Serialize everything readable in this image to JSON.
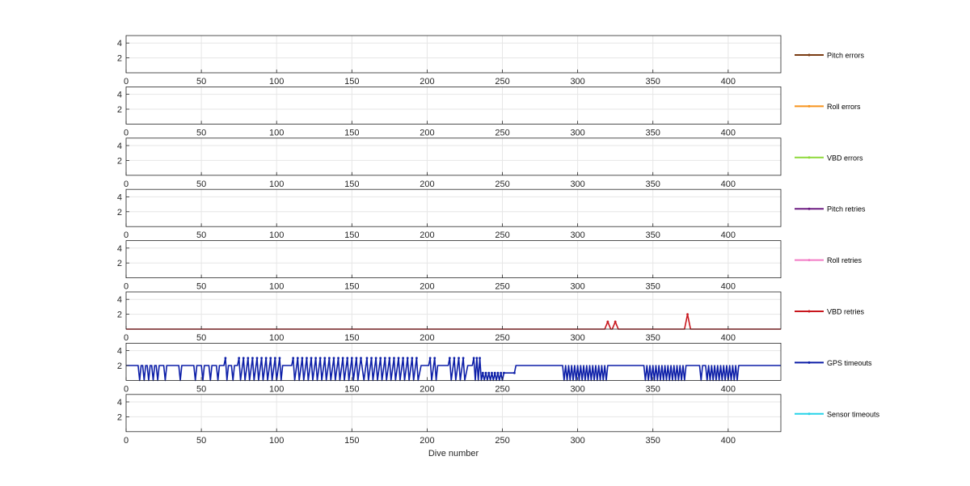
{
  "chart_data": {
    "type": "line",
    "xlabel": "Dive number",
    "xlim": [
      0,
      435
    ],
    "ylim": [
      0,
      5
    ],
    "x_ticks": [
      0,
      50,
      100,
      150,
      200,
      250,
      300,
      350,
      400
    ],
    "y_ticks": [
      2,
      4
    ],
    "grid": true,
    "legend_placement": "right",
    "series": [
      {
        "name": "Pitch errors",
        "color": "#7a3b12",
        "points": []
      },
      {
        "name": "Roll errors",
        "color": "#f7941d",
        "points": []
      },
      {
        "name": "VBD errors",
        "color": "#8ed93a",
        "points": []
      },
      {
        "name": "Pitch retries",
        "color": "#6b1a80",
        "points": []
      },
      {
        "name": "Roll retries",
        "color": "#f27ac5",
        "points": []
      },
      {
        "name": "VBD retries",
        "color": "#c8161d",
        "points": [
          [
            0,
            0
          ],
          [
            318,
            0
          ],
          [
            320,
            1
          ],
          [
            322,
            0
          ],
          [
            323,
            0
          ],
          [
            325,
            1
          ],
          [
            327,
            0
          ],
          [
            371,
            0
          ],
          [
            373,
            2
          ],
          [
            375,
            0
          ],
          [
            435,
            0
          ]
        ]
      },
      {
        "name": "GPS timeouts",
        "color": "#0d1fa8",
        "points": [
          [
            0,
            2
          ],
          [
            8,
            2
          ],
          [
            9,
            0
          ],
          [
            10,
            2
          ],
          [
            11,
            2
          ],
          [
            12,
            0
          ],
          [
            13,
            2
          ],
          [
            14,
            2
          ],
          [
            15,
            0
          ],
          [
            16,
            2
          ],
          [
            17,
            2
          ],
          [
            18,
            0
          ],
          [
            19,
            2
          ],
          [
            20,
            2
          ],
          [
            21,
            0
          ],
          [
            22,
            2
          ],
          [
            25,
            2
          ],
          [
            26,
            0
          ],
          [
            27,
            2
          ],
          [
            35,
            2
          ],
          [
            36,
            0
          ],
          [
            37,
            2
          ],
          [
            45,
            2
          ],
          [
            46,
            0
          ],
          [
            47,
            2
          ],
          [
            50,
            2
          ],
          [
            51,
            0
          ],
          [
            52,
            2
          ],
          [
            55,
            2
          ],
          [
            56,
            0
          ],
          [
            57,
            2
          ],
          [
            60,
            2
          ],
          [
            61,
            0
          ],
          [
            62,
            2
          ],
          [
            65,
            2
          ],
          [
            66,
            3
          ],
          [
            67,
            0
          ],
          [
            68,
            2
          ],
          [
            70,
            2
          ],
          [
            71,
            0
          ],
          [
            72,
            2
          ],
          [
            74,
            2
          ],
          [
            75,
            3
          ],
          [
            76,
            0
          ],
          [
            78,
            3
          ],
          [
            79,
            0
          ],
          [
            81,
            3
          ],
          [
            82,
            0
          ],
          [
            84,
            3
          ],
          [
            85,
            0
          ],
          [
            87,
            3
          ],
          [
            88,
            0
          ],
          [
            90,
            3
          ],
          [
            91,
            0
          ],
          [
            93,
            3
          ],
          [
            94,
            0
          ],
          [
            96,
            3
          ],
          [
            97,
            0
          ],
          [
            99,
            3
          ],
          [
            100,
            0
          ],
          [
            102,
            3
          ],
          [
            103,
            0
          ],
          [
            104,
            2
          ],
          [
            110,
            2
          ],
          [
            111,
            3
          ],
          [
            112,
            0
          ],
          [
            114,
            3
          ],
          [
            115,
            0
          ],
          [
            117,
            3
          ],
          [
            118,
            0
          ],
          [
            120,
            3
          ],
          [
            121,
            0
          ],
          [
            123,
            3
          ],
          [
            124,
            0
          ],
          [
            126,
            3
          ],
          [
            127,
            0
          ],
          [
            129,
            3
          ],
          [
            130,
            0
          ],
          [
            132,
            3
          ],
          [
            133,
            0
          ],
          [
            135,
            3
          ],
          [
            136,
            0
          ],
          [
            138,
            3
          ],
          [
            139,
            0
          ],
          [
            141,
            3
          ],
          [
            142,
            0
          ],
          [
            144,
            3
          ],
          [
            145,
            0
          ],
          [
            147,
            3
          ],
          [
            148,
            0
          ],
          [
            150,
            3
          ],
          [
            151,
            0
          ],
          [
            153,
            3
          ],
          [
            154,
            0
          ],
          [
            156,
            3
          ],
          [
            158,
            0
          ],
          [
            160,
            3
          ],
          [
            161,
            0
          ],
          [
            163,
            3
          ],
          [
            164,
            0
          ],
          [
            166,
            3
          ],
          [
            167,
            0
          ],
          [
            169,
            3
          ],
          [
            170,
            0
          ],
          [
            172,
            3
          ],
          [
            173,
            0
          ],
          [
            175,
            3
          ],
          [
            176,
            0
          ],
          [
            178,
            3
          ],
          [
            179,
            0
          ],
          [
            181,
            3
          ],
          [
            182,
            0
          ],
          [
            184,
            3
          ],
          [
            185,
            0
          ],
          [
            187,
            3
          ],
          [
            188,
            0
          ],
          [
            190,
            3
          ],
          [
            191,
            0
          ],
          [
            193,
            3
          ],
          [
            194,
            0
          ],
          [
            196,
            2
          ],
          [
            201,
            2
          ],
          [
            202,
            3
          ],
          [
            203,
            0
          ],
          [
            205,
            3
          ],
          [
            206,
            0
          ],
          [
            207,
            2
          ],
          [
            214,
            2
          ],
          [
            215,
            3
          ],
          [
            216,
            0
          ],
          [
            218,
            3
          ],
          [
            219,
            0
          ],
          [
            221,
            3
          ],
          [
            222,
            0
          ],
          [
            224,
            3
          ],
          [
            225,
            0
          ],
          [
            227,
            2
          ],
          [
            230,
            2
          ],
          [
            231,
            3
          ],
          [
            232,
            0
          ],
          [
            233,
            3
          ],
          [
            234,
            0
          ],
          [
            235,
            3
          ],
          [
            236,
            0
          ],
          [
            237,
            1
          ],
          [
            238,
            0
          ],
          [
            239,
            1
          ],
          [
            240,
            0
          ],
          [
            241,
            1
          ],
          [
            242,
            0
          ],
          [
            243,
            1
          ],
          [
            244,
            0
          ],
          [
            245,
            1
          ],
          [
            246,
            0
          ],
          [
            247,
            1
          ],
          [
            248,
            0
          ],
          [
            249,
            1
          ],
          [
            250,
            0
          ],
          [
            251,
            1
          ],
          [
            258,
            1
          ],
          [
            259,
            2
          ],
          [
            290,
            2
          ],
          [
            291,
            0
          ],
          [
            292,
            2
          ],
          [
            293,
            0
          ],
          [
            294,
            2
          ],
          [
            295,
            0
          ],
          [
            296,
            2
          ],
          [
            297,
            0
          ],
          [
            298,
            2
          ],
          [
            299,
            0
          ],
          [
            300,
            2
          ],
          [
            301,
            0
          ],
          [
            302,
            2
          ],
          [
            303,
            0
          ],
          [
            304,
            2
          ],
          [
            305,
            0
          ],
          [
            306,
            2
          ],
          [
            307,
            0
          ],
          [
            308,
            2
          ],
          [
            309,
            0
          ],
          [
            310,
            2
          ],
          [
            311,
            0
          ],
          [
            312,
            2
          ],
          [
            313,
            0
          ],
          [
            314,
            2
          ],
          [
            315,
            0
          ],
          [
            316,
            2
          ],
          [
            317,
            0
          ],
          [
            318,
            2
          ],
          [
            319,
            0
          ],
          [
            320,
            2
          ],
          [
            344,
            2
          ],
          [
            345,
            0
          ],
          [
            346,
            2
          ],
          [
            347,
            0
          ],
          [
            348,
            2
          ],
          [
            349,
            0
          ],
          [
            350,
            2
          ],
          [
            351,
            0
          ],
          [
            352,
            2
          ],
          [
            353,
            0
          ],
          [
            354,
            2
          ],
          [
            355,
            0
          ],
          [
            356,
            2
          ],
          [
            357,
            0
          ],
          [
            358,
            2
          ],
          [
            359,
            0
          ],
          [
            360,
            2
          ],
          [
            361,
            0
          ],
          [
            362,
            2
          ],
          [
            363,
            0
          ],
          [
            364,
            2
          ],
          [
            365,
            0
          ],
          [
            366,
            2
          ],
          [
            367,
            0
          ],
          [
            368,
            2
          ],
          [
            369,
            0
          ],
          [
            370,
            2
          ],
          [
            371,
            0
          ],
          [
            372,
            2
          ],
          [
            381,
            2
          ],
          [
            382,
            0
          ],
          [
            383,
            2
          ],
          [
            385,
            2
          ],
          [
            386,
            0
          ],
          [
            387,
            2
          ],
          [
            388,
            0
          ],
          [
            389,
            2
          ],
          [
            390,
            0
          ],
          [
            391,
            2
          ],
          [
            392,
            0
          ],
          [
            393,
            2
          ],
          [
            394,
            0
          ],
          [
            395,
            2
          ],
          [
            396,
            0
          ],
          [
            397,
            2
          ],
          [
            398,
            0
          ],
          [
            399,
            2
          ],
          [
            400,
            0
          ],
          [
            401,
            2
          ],
          [
            402,
            0
          ],
          [
            403,
            2
          ],
          [
            404,
            0
          ],
          [
            405,
            2
          ],
          [
            406,
            0
          ],
          [
            407,
            2
          ],
          [
            435,
            2
          ]
        ]
      },
      {
        "name": "Sensor timeouts",
        "color": "#27d3e8",
        "points": []
      }
    ]
  }
}
